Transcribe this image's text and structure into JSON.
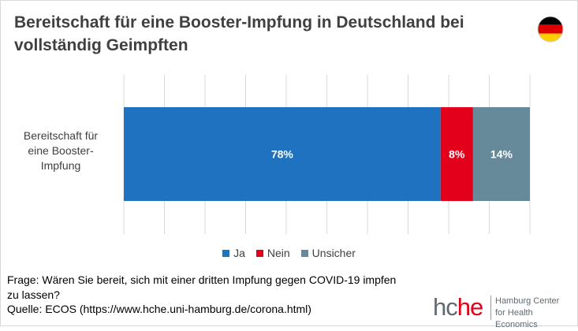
{
  "title": "Bereitschaft für eine Booster-Impfung in Deutschland bei vollständig Geimpften",
  "flag": {
    "icon": "germany-flag-icon",
    "colors": [
      "#000000",
      "#dd0000",
      "#ffce00"
    ]
  },
  "chart_data": {
    "type": "bar",
    "orientation": "horizontal",
    "stacked": true,
    "percent": true,
    "categories": [
      "Bereitschaft für eine Booster-Impfung"
    ],
    "series": [
      {
        "name": "Ja",
        "values": [
          78
        ],
        "label": "78%",
        "color": "#1f72bf"
      },
      {
        "name": "Nein",
        "values": [
          8
        ],
        "label": "8%",
        "color": "#e2001a"
      },
      {
        "name": "Unsicher",
        "values": [
          14
        ],
        "label": "14%",
        "color": "#668a99"
      }
    ],
    "xlim": [
      0,
      100
    ],
    "grid": true,
    "legend": "bottom"
  },
  "footer": {
    "question_line1": "Frage: Wären Sie bereit,  sich mit einer dritten Impfung gegen COVID-19 impfen",
    "question_line2": "zu lassen?",
    "source": "Quelle: ECOS (https://www.hche.uni-hamburg.de/corona.html)"
  },
  "logo": {
    "word_part1": "hc",
    "word_part2": "he",
    "line1": "Hamburg Center",
    "line2": "for Health Economics",
    "colors": {
      "grey": "#5f6a72",
      "red": "#e2001a"
    }
  }
}
